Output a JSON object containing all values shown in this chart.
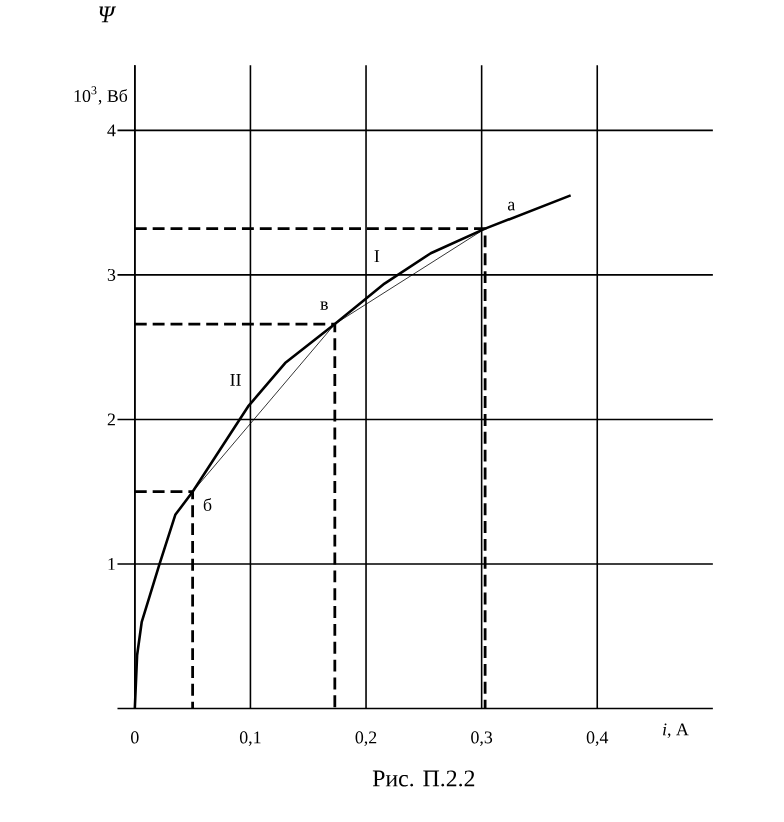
{
  "chart_data": {
    "type": "line",
    "xlabel": "*i*, A",
    "ylabel": "Ψ",
    "xlim": [
      -0.015,
      0.5
    ],
    "ylim": [
      0,
      4.45
    ],
    "xticks": [
      0,
      {
        "value": 0.1,
        "label": "0,1"
      },
      {
        "value": 0.2,
        "label": "0,2"
      },
      {
        "value": 0.3,
        "label": "0,3"
      },
      {
        "value": 0.4,
        "label": "0,4"
      }
    ],
    "yticks": [
      1,
      2,
      3,
      4
    ],
    "grid": true,
    "marker": "none",
    "series": [
      {
        "color": "#000000",
        "line_style": "solid",
        "x": [
          0,
          0.002,
          0.006,
          0.021,
          0.035,
          0.05,
          0.098,
          0.13,
          0.173,
          0.216,
          0.256,
          0.303,
          0.377
        ],
        "values": [
          0,
          0.37,
          0.6,
          0.99,
          1.34,
          1.5,
          2.09,
          2.39,
          2.66,
          2.94,
          3.15,
          3.32,
          3.55
        ]
      },
      {
        "color": "#000000",
        "line_style": "solid",
        "x": [
          0.05,
          0.173,
          0.303
        ],
        "values": [
          1.5,
          2.66,
          3.32
        ]
      },
      {
        "color": "#000000",
        "line_style": "dashed",
        "x": [
          0,
          0.05,
          0.05
        ],
        "values": [
          1.5,
          1.5,
          0
        ]
      },
      {
        "color": "#000000",
        "line_style": "dashed",
        "x": [
          0,
          0.173,
          0.173
        ],
        "values": [
          2.66,
          2.66,
          0
        ]
      },
      {
        "color": "#000000",
        "line_style": "dashed",
        "x": [
          0,
          0.303,
          0.303
        ],
        "values": [
          3.32,
          3.32,
          0
        ]
      }
    ],
    "annotations": [
      "10$^{3}$, Вб",
      "Рис. П.2.2",
      {
        "text": "а",
        "x": 0.303,
        "y": 3.32
      },
      {
        "text": "в",
        "x": 0.173,
        "y": 2.66
      },
      {
        "text": "б",
        "x": 0.05,
        "y": 1.5
      },
      {
        "text": "I",
        "x": 0.238,
        "y": 2.99
      },
      {
        "text": "II",
        "x": 0.1115,
        "y": 2.08
      }
    ]
  }
}
